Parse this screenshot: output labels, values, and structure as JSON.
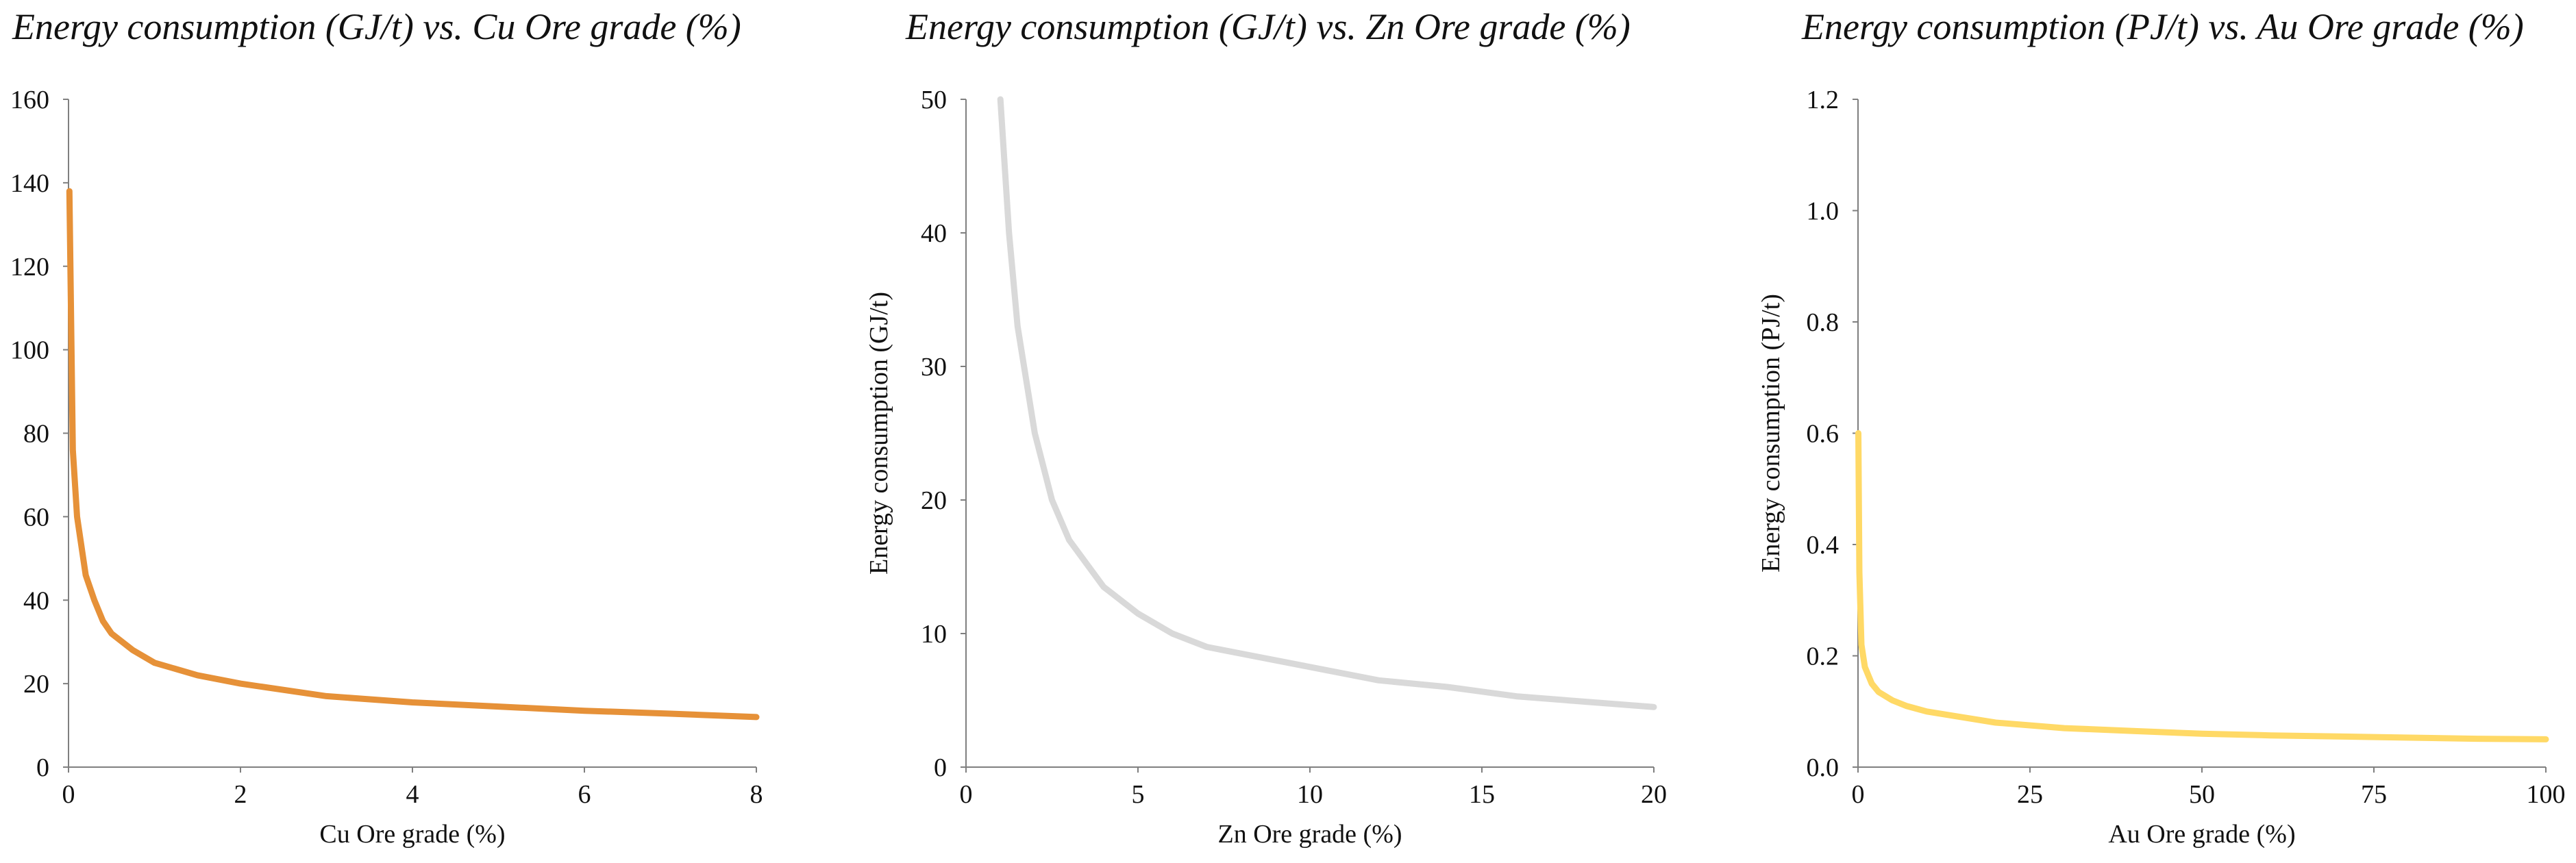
{
  "chart_data": [
    {
      "type": "line",
      "title": "Energy consumption (GJ/t) vs. Cu Ore grade (%)",
      "xlabel": "Cu Ore grade (%)",
      "ylabel": "",
      "xlim": [
        0,
        8
      ],
      "ylim": [
        0,
        160
      ],
      "xticks": [
        0,
        2,
        4,
        6,
        8
      ],
      "yticks": [
        0,
        20,
        40,
        60,
        80,
        100,
        120,
        140,
        160
      ],
      "color": "#E69138",
      "series": [
        {
          "name": "Cu",
          "x": [
            0.01,
            0.05,
            0.1,
            0.2,
            0.3,
            0.4,
            0.5,
            0.75,
            1,
            1.5,
            2,
            3,
            4,
            5,
            6,
            7,
            8
          ],
          "y": [
            138,
            76,
            60,
            46,
            40,
            35,
            32,
            28,
            25,
            22,
            20,
            17,
            15.5,
            14.5,
            13.5,
            12.8,
            12
          ]
        }
      ]
    },
    {
      "type": "line",
      "title": "Energy consumption (GJ/t) vs. Zn Ore grade (%)",
      "xlabel": "Zn Ore grade (%)",
      "ylabel": "Energy consumption (GJ/t)",
      "xlim": [
        0,
        20
      ],
      "ylim": [
        0,
        50
      ],
      "xticks": [
        0,
        5,
        10,
        15,
        20
      ],
      "yticks": [
        0,
        10,
        20,
        30,
        40,
        50
      ],
      "color": "#D9D9D9",
      "series": [
        {
          "name": "Zn",
          "x": [
            1,
            1.25,
            1.5,
            2,
            2.5,
            3,
            4,
            5,
            6,
            7,
            8,
            10,
            12,
            14,
            16,
            18,
            20
          ],
          "y": [
            50,
            40,
            33,
            25,
            20,
            17,
            13.5,
            11.5,
            10,
            9,
            8.5,
            7.5,
            6.5,
            6,
            5.3,
            4.9,
            4.5
          ]
        }
      ]
    },
    {
      "type": "line",
      "title": "Energy consumption (PJ/t) vs. Au Ore grade (%)",
      "xlabel": "Au Ore grade (%)",
      "ylabel": "Energy consumption (PJ/t)",
      "xlim": [
        0,
        100
      ],
      "ylim": [
        0,
        1.2
      ],
      "xticks": [
        0,
        25,
        50,
        75,
        100
      ],
      "yticks": [
        "0.0",
        "0.2",
        "0.4",
        "0.6",
        "0.8",
        "1.0",
        "1.2"
      ],
      "color": "#FFD966",
      "series": [
        {
          "name": "Au",
          "x": [
            0.05,
            0.2,
            0.5,
            1,
            2,
            3,
            5,
            7,
            10,
            15,
            20,
            30,
            40,
            50,
            60,
            75,
            90,
            100
          ],
          "y": [
            0.6,
            0.35,
            0.22,
            0.18,
            0.15,
            0.135,
            0.12,
            0.11,
            0.1,
            0.09,
            0.08,
            0.07,
            0.065,
            0.06,
            0.057,
            0.054,
            0.051,
            0.05
          ]
        }
      ]
    }
  ]
}
